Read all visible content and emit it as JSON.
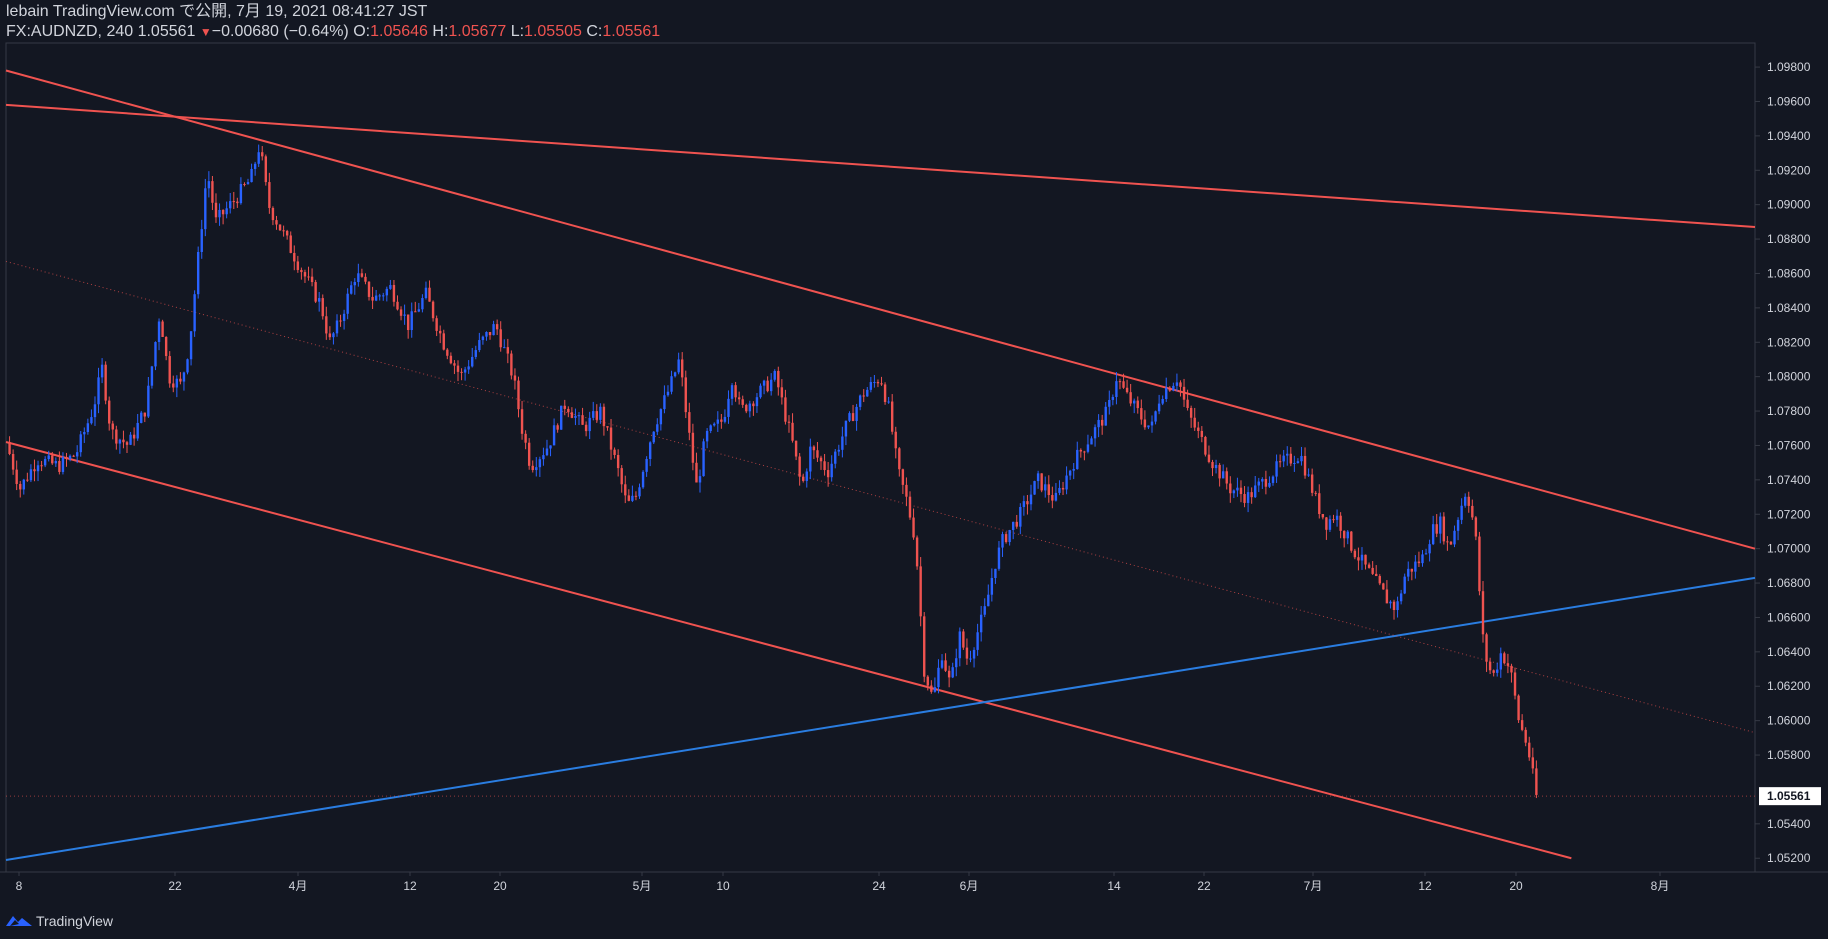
{
  "header": {
    "publisher_line": "lebain TradingView.com で公開, 7月 19, 2021 08:41:27 JST",
    "symbol": "FX:AUDNZD, 240 1.05561",
    "change_arrow": "▼",
    "change": "−0.00680 (−0.64%)",
    "open_label": "O:",
    "open_value": "1.05646",
    "high_label": "H:",
    "high_value": "1.05677",
    "low_label": "L:",
    "low_value": "1.05505",
    "close_label": "C:",
    "close_value": "1.05561"
  },
  "footer": {
    "brand": "TradingView"
  },
  "colors": {
    "background": "#131722",
    "up": "#2962ff",
    "down": "#ef5350",
    "trend_red": "#f05350",
    "trend_blue": "#2a7de1",
    "grid_border": "#363a45",
    "axis_text": "#d1d4dc"
  },
  "chart_data": {
    "type": "candlestick",
    "symbol": "FX:AUDNZD",
    "interval": "240",
    "ylim": [
      1.0512,
      1.0994
    ],
    "y_ticks": [
      "1.09800",
      "1.09600",
      "1.09400",
      "1.09200",
      "1.09000",
      "1.08800",
      "1.08600",
      "1.08400",
      "1.08200",
      "1.08000",
      "1.07800",
      "1.07600",
      "1.07400",
      "1.07200",
      "1.07000",
      "1.06800",
      "1.06600",
      "1.06400",
      "1.06200",
      "1.06000",
      "1.05800",
      "1.05400",
      "1.05200"
    ],
    "last_price": "1.05561",
    "x_tick_labels": [
      "8",
      "22",
      "4月",
      "12",
      "20",
      "5月",
      "10",
      "24",
      "6月",
      "14",
      "22",
      "7月",
      "12",
      "20",
      "8月"
    ],
    "price_path": [
      [
        0,
        1.0762
      ],
      [
        0.008,
        1.0735
      ],
      [
        0.018,
        1.0752
      ],
      [
        0.03,
        1.0748
      ],
      [
        0.04,
        1.0755
      ],
      [
        0.05,
        1.0782
      ],
      [
        0.055,
        1.0805
      ],
      [
        0.06,
        1.0768
      ],
      [
        0.07,
        1.076
      ],
      [
        0.08,
        1.0782
      ],
      [
        0.088,
        1.0838
      ],
      [
        0.093,
        1.08
      ],
      [
        0.1,
        1.0795
      ],
      [
        0.105,
        1.082
      ],
      [
        0.11,
        1.087
      ],
      [
        0.115,
        1.092
      ],
      [
        0.12,
        1.089
      ],
      [
        0.13,
        1.0902
      ],
      [
        0.14,
        1.0915
      ],
      [
        0.145,
        1.0935
      ],
      [
        0.15,
        1.09
      ],
      [
        0.16,
        1.088
      ],
      [
        0.17,
        1.086
      ],
      [
        0.18,
        1.0842
      ],
      [
        0.185,
        1.082
      ],
      [
        0.19,
        1.083
      ],
      [
        0.2,
        1.086
      ],
      [
        0.21,
        1.0845
      ],
      [
        0.22,
        1.0852
      ],
      [
        0.23,
        1.083
      ],
      [
        0.24,
        1.0848
      ],
      [
        0.25,
        1.082
      ],
      [
        0.26,
        1.08
      ],
      [
        0.27,
        1.0818
      ],
      [
        0.28,
        1.083
      ],
      [
        0.29,
        1.08
      ],
      [
        0.295,
        1.077
      ],
      [
        0.3,
        1.0748
      ],
      [
        0.31,
        1.076
      ],
      [
        0.32,
        1.0785
      ],
      [
        0.33,
        1.077
      ],
      [
        0.34,
        1.078
      ],
      [
        0.35,
        1.0745
      ],
      [
        0.355,
        1.0725
      ],
      [
        0.36,
        1.073
      ],
      [
        0.37,
        1.077
      ],
      [
        0.38,
        1.0795
      ],
      [
        0.385,
        1.081
      ],
      [
        0.39,
        1.077
      ],
      [
        0.395,
        1.0735
      ],
      [
        0.4,
        1.0765
      ],
      [
        0.41,
        1.0775
      ],
      [
        0.415,
        1.08
      ],
      [
        0.42,
        1.078
      ],
      [
        0.43,
        1.079
      ],
      [
        0.44,
        1.08
      ],
      [
        0.45,
        1.076
      ],
      [
        0.455,
        1.0735
      ],
      [
        0.46,
        1.0758
      ],
      [
        0.47,
        1.0745
      ],
      [
        0.48,
        1.077
      ],
      [
        0.49,
        1.079
      ],
      [
        0.5,
        1.08
      ],
      [
        0.505,
        1.078
      ],
      [
        0.51,
        1.0745
      ],
      [
        0.515,
        1.0728
      ],
      [
        0.52,
        1.0705
      ],
      [
        0.525,
        1.063
      ],
      [
        0.53,
        1.0612
      ],
      [
        0.535,
        1.064
      ],
      [
        0.54,
        1.062
      ],
      [
        0.545,
        1.065
      ],
      [
        0.55,
        1.0635
      ],
      [
        0.56,
        1.0665
      ],
      [
        0.565,
        1.069
      ],
      [
        0.57,
        1.0705
      ],
      [
        0.58,
        1.072
      ],
      [
        0.59,
        1.074
      ],
      [
        0.6,
        1.0728
      ],
      [
        0.61,
        1.075
      ],
      [
        0.62,
        1.0765
      ],
      [
        0.63,
        1.078
      ],
      [
        0.635,
        1.08
      ],
      [
        0.64,
        1.079
      ],
      [
        0.65,
        1.0775
      ],
      [
        0.655,
        1.077
      ],
      [
        0.66,
        1.079
      ],
      [
        0.67,
        1.08
      ],
      [
        0.675,
        1.078
      ],
      [
        0.68,
        1.077
      ],
      [
        0.69,
        1.075
      ],
      [
        0.7,
        1.0735
      ],
      [
        0.71,
        1.073
      ],
      [
        0.72,
        1.074
      ],
      [
        0.73,
        1.075
      ],
      [
        0.74,
        1.0755
      ],
      [
        0.75,
        1.0725
      ],
      [
        0.755,
        1.0715
      ],
      [
        0.76,
        1.072
      ],
      [
        0.77,
        1.07
      ],
      [
        0.78,
        1.0685
      ],
      [
        0.79,
        1.067
      ],
      [
        0.795,
        1.0665
      ],
      [
        0.8,
        1.0685
      ],
      [
        0.81,
        1.0695
      ],
      [
        0.815,
        1.071
      ],
      [
        0.82,
        1.0715
      ],
      [
        0.825,
        1.07
      ],
      [
        0.83,
        1.0718
      ],
      [
        0.835,
        1.0735
      ],
      [
        0.84,
        1.071
      ],
      [
        0.845,
        1.064
      ],
      [
        0.85,
        1.0625
      ],
      [
        0.855,
        1.064
      ],
      [
        0.86,
        1.063
      ],
      [
        0.865,
        1.06
      ],
      [
        0.87,
        1.0585
      ],
      [
        0.875,
        1.0556
      ]
    ],
    "trend_lines": [
      {
        "color": "red",
        "from": [
          0.0,
          1.0978
        ],
        "to": [
          1.0,
          1.07
        ]
      },
      {
        "color": "red",
        "from": [
          0.0,
          1.0958
        ],
        "to": [
          1.0,
          1.0887
        ]
      },
      {
        "color": "red",
        "from": [
          0.0,
          1.0762
        ],
        "to": [
          0.895,
          1.052
        ]
      },
      {
        "color": "blue",
        "from": [
          0.0,
          1.0519
        ],
        "to": [
          1.0,
          1.0683
        ]
      },
      {
        "color": "red-dotted",
        "from": [
          0.0,
          1.0867
        ],
        "to": [
          1.0,
          1.0593
        ]
      }
    ]
  }
}
